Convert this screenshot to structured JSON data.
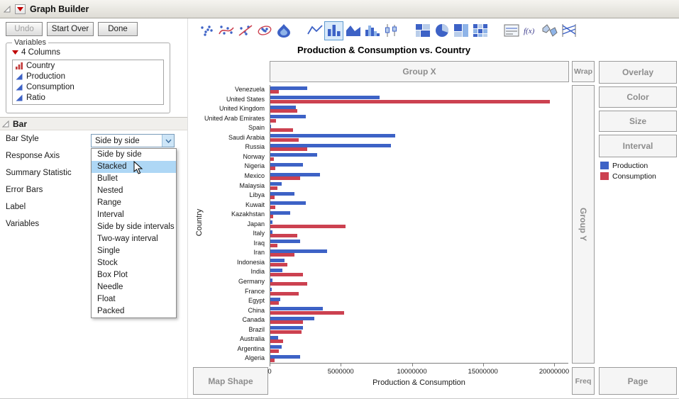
{
  "window": {
    "title": "Graph Builder"
  },
  "action_buttons": {
    "undo": "Undo",
    "start_over": "Start Over",
    "done": "Done"
  },
  "variables_panel": {
    "title": "Variables",
    "columns_label": "4 Columns",
    "columns": [
      {
        "name": "Country",
        "icon": "nominal-column-icon"
      },
      {
        "name": "Production",
        "icon": "continuous-column-icon"
      },
      {
        "name": "Consumption",
        "icon": "continuous-column-icon"
      },
      {
        "name": "Ratio",
        "icon": "continuous-column-icon"
      }
    ]
  },
  "bar_panel": {
    "title": "Bar",
    "properties": [
      "Bar Style",
      "Response Axis",
      "Summary Statistic",
      "Error Bars",
      "Label",
      "Variables"
    ],
    "bar_style_value": "Side by side"
  },
  "bar_style_menu": {
    "items": [
      "Side by side",
      "Stacked",
      "Bullet",
      "Nested",
      "Range",
      "Interval",
      "Side by side intervals",
      "Two-way interval",
      "Single",
      "Stock",
      "Box Plot",
      "Needle",
      "Float",
      "Packed"
    ],
    "highlighted_item": "Stacked"
  },
  "element_toolbar": {
    "icons": [
      "points",
      "smoother",
      "line-of-fit",
      "ellipse",
      "contour",
      "line",
      "bar",
      "area",
      "histogram",
      "box-plot",
      "mosaic",
      "pie",
      "treemap",
      "heatmap",
      "caption-box",
      "formula",
      "map-shapes",
      "parallel-plot"
    ],
    "selected": "bar",
    "groups": [
      5,
      5,
      4,
      4
    ]
  },
  "zones": {
    "group_x": "Group X",
    "wrap": "Wrap",
    "group_y": "Group Y",
    "map_shape": "Map Shape",
    "freq": "Freq",
    "page": "Page"
  },
  "right_buttons": [
    "Overlay",
    "Color",
    "Size",
    "Interval"
  ],
  "chart_data": {
    "type": "bar",
    "orientation": "horizontal",
    "title": "Production & Consumption vs. Country",
    "xlabel": "Production & Consumption",
    "ylabel": "Country",
    "xlim": [
      0,
      21000000
    ],
    "x_ticks": [
      0,
      5000000,
      10000000,
      15000000,
      20000000
    ],
    "grid": false,
    "legend_position": "right",
    "categories": [
      "Venezuela",
      "United States",
      "United Kingdom",
      "United Arab Emirates",
      "Spain",
      "Saudi Arabia",
      "Russia",
      "Norway",
      "Nigeria",
      "Mexico",
      "Malaysia",
      "Libya",
      "Kuwait",
      "Kazakhstan",
      "Japan",
      "Italy",
      "Iraq",
      "Iran",
      "Indonesia",
      "India",
      "Germany",
      "France",
      "Egypt",
      "China",
      "Canada",
      "Brazil",
      "Australia",
      "Argentina",
      "Algeria"
    ],
    "series": [
      {
        "name": "Production",
        "color": "#3d62c6",
        "values": [
          2600000,
          7700000,
          1800000,
          2500000,
          30000,
          8800000,
          8500000,
          3300000,
          2300000,
          3500000,
          800000,
          1700000,
          2500000,
          1400000,
          130000,
          150000,
          2100000,
          4000000,
          1000000,
          850000,
          150000,
          100000,
          700000,
          3700000,
          3100000,
          2300000,
          570000,
          800000,
          2100000
        ]
      },
      {
        "name": "Consumption",
        "color": "#cc4150",
        "values": [
          600000,
          19650000,
          1900000,
          400000,
          1600000,
          2000000,
          2600000,
          250000,
          350000,
          2100000,
          500000,
          280000,
          370000,
          220000,
          5300000,
          1900000,
          500000,
          1700000,
          1200000,
          2300000,
          2600000,
          2000000,
          600000,
          5200000,
          2300000,
          2200000,
          900000,
          580000,
          300000
        ]
      }
    ]
  }
}
